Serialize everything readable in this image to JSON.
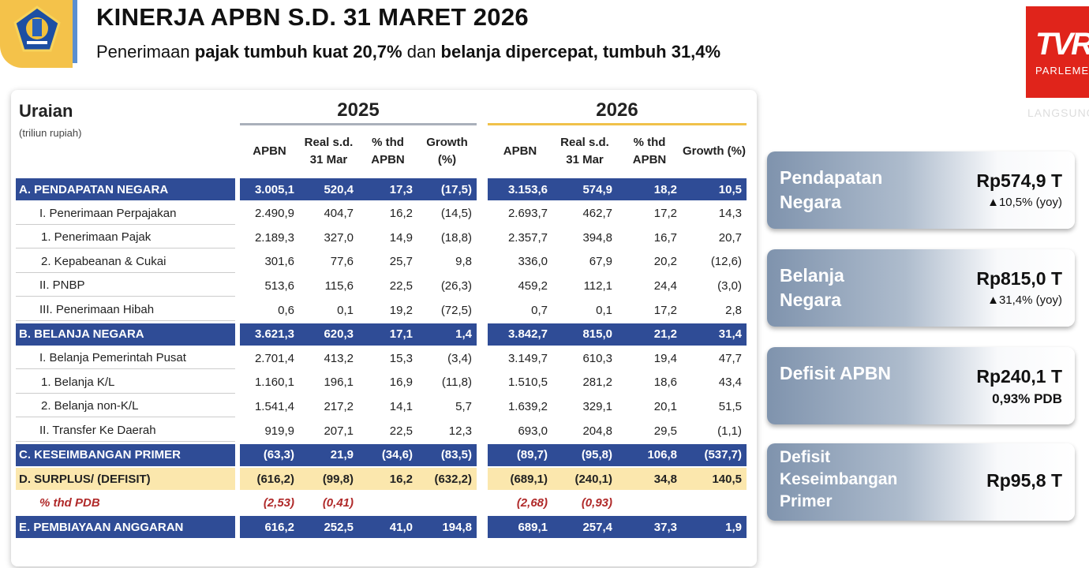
{
  "header": {
    "title": "KINERJA APBN S.D. 31 MARET 2026",
    "subtitle_parts": [
      "Penerimaan ",
      "pajak tumbuh kuat 20,7%",
      " dan ",
      "belanja dipercepat, tumbuh 31,4%"
    ]
  },
  "broadcaster": {
    "logo_text": "TVR",
    "logo_sub": "PARLEMEN",
    "live": "LANGSUNG"
  },
  "table": {
    "label_header": "Uraian",
    "unit": "(triliun rupiah)",
    "years": [
      "2025",
      "2026"
    ],
    "columns": [
      "APBN",
      "Real s.d. 31 Mar",
      "% thd APBN",
      "Growth (%)"
    ],
    "rows": [
      {
        "style": "blue",
        "label": "A. PENDAPATAN NEGARA",
        "v": [
          "3.005,1",
          "520,4",
          "17,3",
          "(17,5)",
          "3.153,6",
          "574,9",
          "18,2",
          "10,5"
        ]
      },
      {
        "style": "plain",
        "indent": 1,
        "label": "I. Penerimaan Perpajakan",
        "v": [
          "2.490,9",
          "404,7",
          "16,2",
          "(14,5)",
          "2.693,7",
          "462,7",
          "17,2",
          "14,3"
        ]
      },
      {
        "style": "plain",
        "indent": 2,
        "label": "1. Penerimaan Pajak",
        "v": [
          "2.189,3",
          "327,0",
          "14,9",
          "(18,8)",
          "2.357,7",
          "394,8",
          "16,7",
          "20,7"
        ]
      },
      {
        "style": "plain",
        "indent": 2,
        "label": "2. Kepabeanan & Cukai",
        "v": [
          "301,6",
          "77,6",
          "25,7",
          "9,8",
          "336,0",
          "67,9",
          "20,2",
          "(12,6)"
        ]
      },
      {
        "style": "plain",
        "indent": 1,
        "label": "II. PNBP",
        "v": [
          "513,6",
          "115,6",
          "22,5",
          "(26,3)",
          "459,2",
          "112,1",
          "24,4",
          "(3,0)"
        ]
      },
      {
        "style": "plain",
        "indent": 1,
        "label": "III. Penerimaan Hibah",
        "v": [
          "0,6",
          "0,1",
          "19,2",
          "(72,5)",
          "0,7",
          "0,1",
          "17,2",
          "2,8"
        ]
      },
      {
        "style": "blue",
        "label": "B. BELANJA NEGARA",
        "v": [
          "3.621,3",
          "620,3",
          "17,1",
          "1,4",
          "3.842,7",
          "815,0",
          "21,2",
          "31,4"
        ]
      },
      {
        "style": "plain",
        "indent": 1,
        "label": "I. Belanja Pemerintah Pusat",
        "v": [
          "2.701,4",
          "413,2",
          "15,3",
          "(3,4)",
          "3.149,7",
          "610,3",
          "19,4",
          "47,7"
        ]
      },
      {
        "style": "plain",
        "indent": 2,
        "label": "1. Belanja K/L",
        "v": [
          "1.160,1",
          "196,1",
          "16,9",
          "(11,8)",
          "1.510,5",
          "281,2",
          "18,6",
          "43,4"
        ]
      },
      {
        "style": "plain",
        "indent": 2,
        "label": "2. Belanja non-K/L",
        "v": [
          "1.541,4",
          "217,2",
          "14,1",
          "5,7",
          "1.639,2",
          "329,1",
          "20,1",
          "51,5"
        ]
      },
      {
        "style": "plain",
        "indent": 1,
        "label": "II. Transfer Ke Daerah",
        "v": [
          "919,9",
          "207,1",
          "22,5",
          "12,3",
          "693,0",
          "204,8",
          "29,5",
          "(1,1)"
        ]
      },
      {
        "style": "blue",
        "label": "C. KESEIMBANGAN PRIMER",
        "v": [
          "(63,3)",
          "21,9",
          "(34,6)",
          "(83,5)",
          "(89,7)",
          "(95,8)",
          "106,8",
          "(537,7)"
        ]
      },
      {
        "style": "gold",
        "label": "D. SURPLUS/ (DEFISIT)",
        "v": [
          "(616,2)",
          "(99,8)",
          "16,2",
          "(632,2)",
          "(689,1)",
          "(240,1)",
          "34,8",
          "140,5"
        ]
      },
      {
        "style": "red",
        "indent": 1,
        "label": "% thd PDB",
        "v": [
          "(2,53)",
          "(0,41)",
          "",
          "",
          "(2,68)",
          "(0,93)",
          "",
          ""
        ]
      },
      {
        "style": "blue",
        "label": "E. PEMBIAYAAN ANGGARAN",
        "v": [
          "616,2",
          "252,5",
          "41,0",
          "194,8",
          "689,1",
          "257,4",
          "37,3",
          "1,9"
        ]
      }
    ]
  },
  "cards": [
    {
      "label": "Pendapatan Negara",
      "value": "Rp574,9 T",
      "sub": "▲10,5% (yoy)"
    },
    {
      "label": "Belanja Negara",
      "value": "Rp815,0 T",
      "sub": "▲31,4% (yoy)"
    },
    {
      "label": "Defisit APBN",
      "value": "Rp240,1 T",
      "sub": "0,93% PDB"
    },
    {
      "label": "Defisit Keseimbangan Primer",
      "value": "Rp95,8 T",
      "sub": ""
    }
  ],
  "colors": {
    "blue_row": "#2f4c96",
    "gold_row": "#fbe7ad",
    "accent_red": "#e0241b",
    "logo_yellow": "#f4c24a"
  }
}
